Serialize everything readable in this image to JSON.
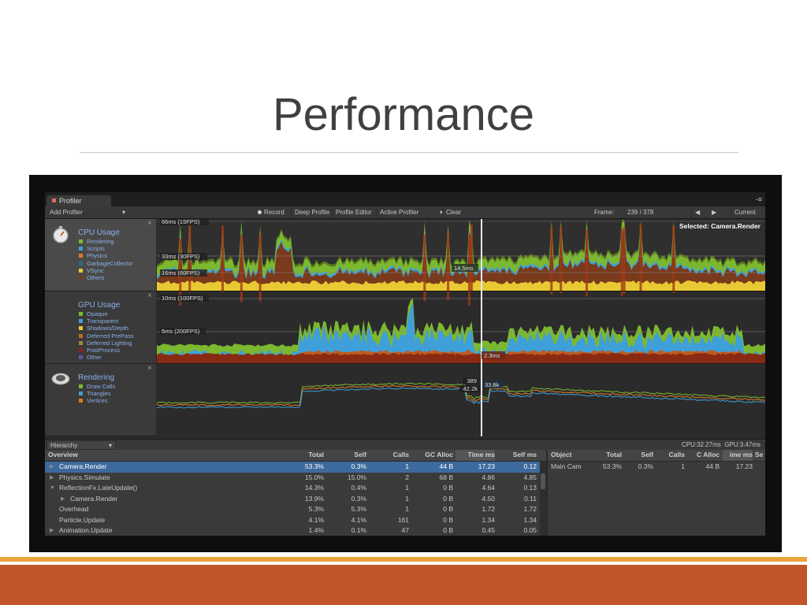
{
  "slide": {
    "title": "Performance"
  },
  "window": {
    "tab_label": "Profiler",
    "menu_glyph": "-≡"
  },
  "toolbar": {
    "add_profiler": "Add Profiler",
    "dropdown_arrow": "▾",
    "record": "Record",
    "deep_profile": "Deep Profile",
    "profile_editor": "Profile Editor",
    "active_profiler": "Active Profiler",
    "clear": "Clear",
    "frame_label": "Frame:",
    "frame_value": "239 / 378",
    "prev_arrow": "◀",
    "next_arrow": "▶",
    "current": "Current"
  },
  "modules": [
    {
      "title": "CPU Usage",
      "icon": "cpu-stopwatch-icon",
      "legend": [
        {
          "label": "Rendering",
          "color": "#7cb82f"
        },
        {
          "label": "Scripts",
          "color": "#3f9fd8"
        },
        {
          "label": "Physics",
          "color": "#e07b22"
        },
        {
          "label": "GarbageCollector",
          "color": "#2a6f86"
        },
        {
          "label": "VSync",
          "color": "#e8c933"
        },
        {
          "label": "Others",
          "color": "#7a3a1c"
        }
      ]
    },
    {
      "title": "GPU Usage",
      "icon": "gpu-icon",
      "legend": [
        {
          "label": "Opaque",
          "color": "#7cb82f"
        },
        {
          "label": "Transparent",
          "color": "#3f9fd8"
        },
        {
          "label": "Shadows/Depth",
          "color": "#e8c933"
        },
        {
          "label": "Deferred PrePass",
          "color": "#c06a20"
        },
        {
          "label": "Deferred Lighting",
          "color": "#9a8a30"
        },
        {
          "label": "PostProcess",
          "color": "#8a2020"
        },
        {
          "label": "Other",
          "color": "#5a5aa0"
        }
      ]
    },
    {
      "title": "Rendering",
      "icon": "rendering-eye-icon",
      "legend": [
        {
          "label": "Draw Calls",
          "color": "#7cb82f"
        },
        {
          "label": "Triangles",
          "color": "#3f9fd8"
        },
        {
          "label": "Vertices",
          "color": "#e07b22"
        }
      ]
    }
  ],
  "close_glyph": "×",
  "graph_labels": {
    "cpu_66": "66ms (15FPS)",
    "cpu_33": "33ms (30FPS)",
    "cpu_16": "16ms (60FPS)",
    "cpu_selected": "Selected: Camera.Render",
    "cpu_value": "14.5ms",
    "gpu_10": "10ms (100FPS)",
    "gpu_5": "5ms (200FPS)",
    "gpu_value": "2.3ms",
    "render_v1": "389",
    "render_v2": "42.2k",
    "render_v3": "33.8k"
  },
  "hierarchy": {
    "mode": "Hierarchy",
    "cpu_stat": "CPU:32.27ms",
    "gpu_stat": "GPU:3.47ms",
    "columns": [
      "Overview",
      "Total",
      "Self",
      "Calls",
      "GC Alloc",
      "Time ms",
      "Self ms"
    ],
    "rows": [
      {
        "name": "Camera.Render",
        "tri": "▶",
        "indent": 1,
        "total": "53.3%",
        "self": "0.3%",
        "calls": "1",
        "gc": "44 B",
        "time": "17.23",
        "selfms": "0.12",
        "selected": true
      },
      {
        "name": "Physics.Simulate",
        "tri": "▶",
        "indent": 1,
        "total": "15.0%",
        "self": "15.0%",
        "calls": "2",
        "gc": "68 B",
        "time": "4.86",
        "selfms": "4.85"
      },
      {
        "name": "ReflectionFx.LateUpdate()",
        "tri": "▼",
        "indent": 1,
        "total": "14.3%",
        "self": "0.4%",
        "calls": "1",
        "gc": "0 B",
        "time": "4.64",
        "selfms": "0.13"
      },
      {
        "name": "Camera.Render",
        "tri": "▶",
        "indent": 2,
        "total": "13.9%",
        "self": "0.3%",
        "calls": "1",
        "gc": "0 B",
        "time": "4.50",
        "selfms": "0.11"
      },
      {
        "name": "Overhead",
        "tri": "",
        "indent": 1,
        "total": "5.3%",
        "self": "5.3%",
        "calls": "1",
        "gc": "0 B",
        "time": "1.72",
        "selfms": "1.72"
      },
      {
        "name": "Particle.Update",
        "tri": "",
        "indent": 1,
        "total": "4.1%",
        "self": "4.1%",
        "calls": "161",
        "gc": "0 B",
        "time": "1.34",
        "selfms": "1.34"
      },
      {
        "name": "Animation.Update",
        "tri": "▶",
        "indent": 1,
        "total": "1.4%",
        "self": "0.1%",
        "calls": "47",
        "gc": "0 B",
        "time": "0.45",
        "selfms": "0.05"
      }
    ]
  },
  "object_table": {
    "columns": [
      "Object",
      "Total",
      "Self",
      "Calls",
      "C Alloc",
      "ime ms",
      "Se"
    ],
    "rows": [
      {
        "object": "Main Cam",
        "total": "53.3%",
        "self": "0.3%",
        "calls": "1",
        "gc": "44 B",
        "time": "17.23"
      }
    ]
  },
  "colors": {
    "footer_band": "#c0562a",
    "footer_line": "#e8a33a",
    "selection": "#3d6a9e"
  }
}
